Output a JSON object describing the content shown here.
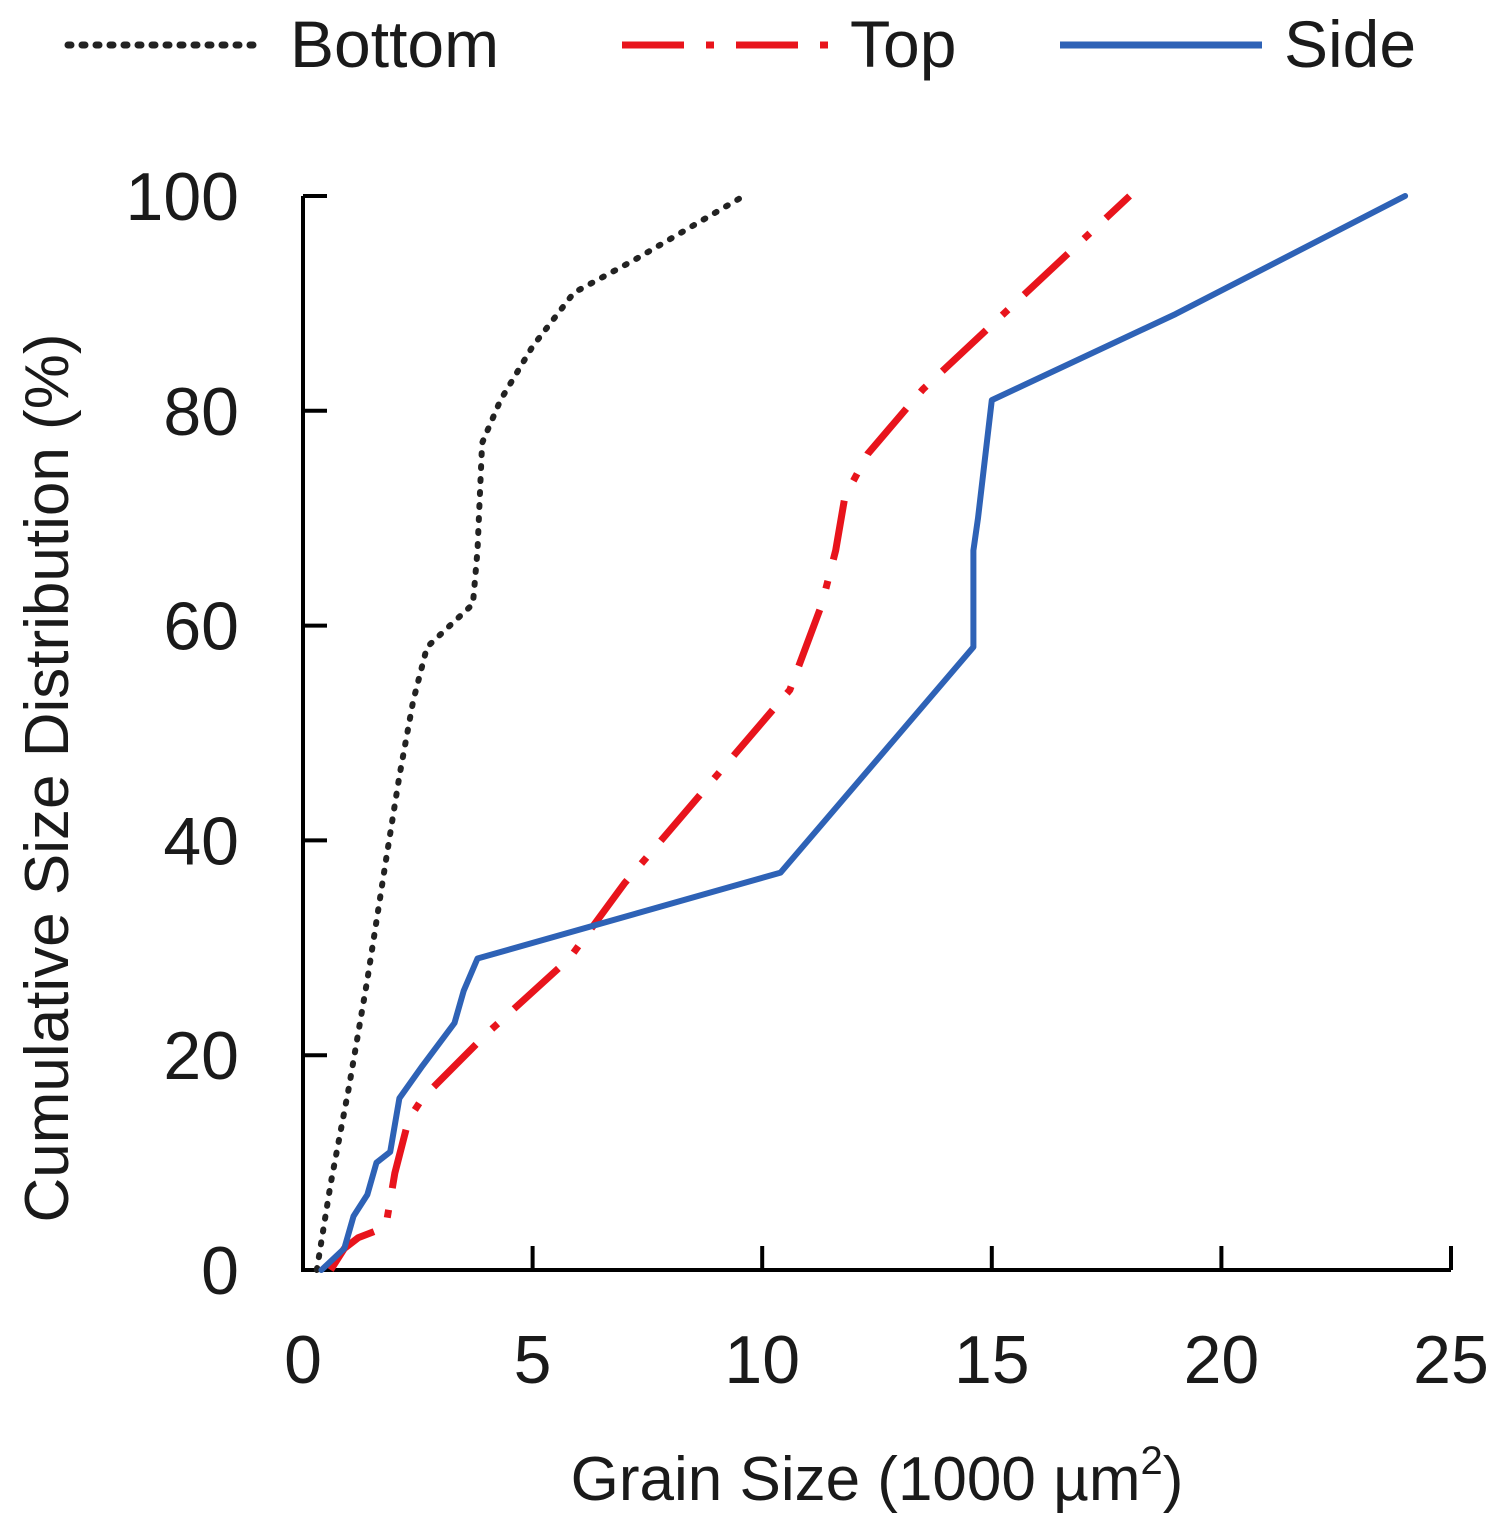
{
  "chart_data": {
    "type": "line",
    "title": "",
    "xlabel_main": "Grain Size (1000 µm",
    "xlabel_sup": "2",
    "xlabel_end": ")",
    "ylabel": "Cumulative Size Distribution (%)",
    "xlim": [
      0,
      25
    ],
    "ylim": [
      0,
      100
    ],
    "x_ticks": [
      0,
      5,
      10,
      15,
      20,
      25
    ],
    "y_ticks": [
      0,
      20,
      40,
      60,
      80,
      100
    ],
    "grid": false,
    "legend_position": "top",
    "series": [
      {
        "name": "Bottom",
        "color": "#222222",
        "style": "dotted",
        "x": [
          0.3,
          0.6,
          1.0,
          1.4,
          1.8,
          2.1,
          2.4,
          2.7,
          3.2,
          3.7,
          3.8,
          3.9,
          4.3,
          5.0,
          5.9,
          7.2,
          9.6
        ],
        "y": [
          0,
          8,
          17,
          27,
          38,
          46,
          53,
          58,
          60,
          62,
          67,
          77,
          81,
          86,
          91,
          94,
          100
        ]
      },
      {
        "name": "Top",
        "color": "#e8141c",
        "style": "dashdot",
        "x": [
          0.6,
          0.9,
          1.2,
          1.8,
          2.0,
          2.3,
          2.6,
          4.0,
          5.8,
          7.0,
          8.8,
          10.6,
          11.3,
          11.6,
          11.8,
          12.3,
          13.5,
          15.0,
          16.5,
          18.0
        ],
        "y": [
          0,
          2,
          3,
          4,
          9,
          14,
          16,
          22,
          29,
          36,
          45,
          54,
          62,
          67,
          72,
          76,
          82,
          88,
          94,
          100
        ]
      },
      {
        "name": "Side",
        "color": "#2e62b6",
        "style": "solid",
        "x": [
          0.4,
          0.9,
          1.1,
          1.4,
          1.6,
          1.9,
          2.1,
          2.6,
          3.3,
          3.5,
          3.8,
          10.4,
          14.6,
          14.6,
          14.7,
          15.0,
          19.0,
          24.0
        ],
        "y": [
          0,
          2,
          5,
          7,
          10,
          11,
          16,
          19,
          23,
          26,
          29,
          37,
          58,
          67,
          70,
          81,
          89,
          100
        ]
      }
    ]
  }
}
